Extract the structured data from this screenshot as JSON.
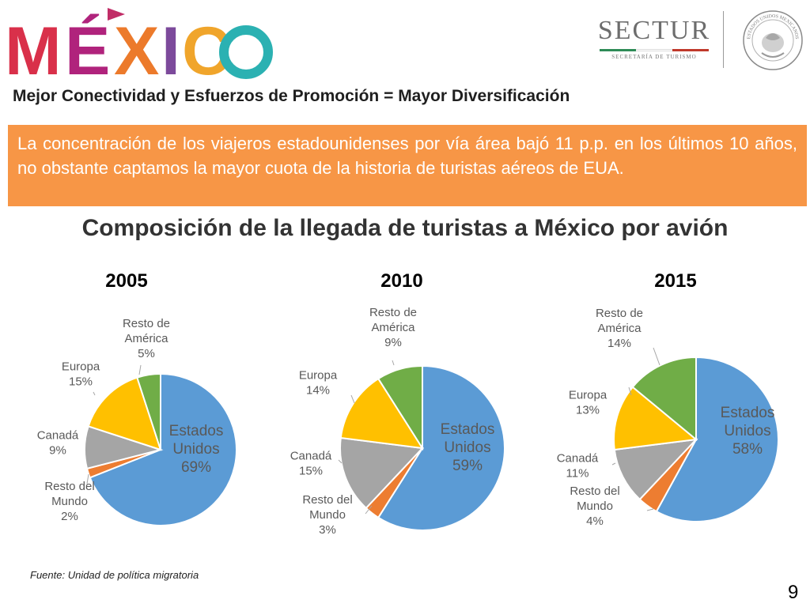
{
  "header": {
    "logo_text": "MÉXICO",
    "sectur_word": "SECTUR",
    "sectur_sub": "SECRETARÍA DE TURISMO",
    "seal_text": "ESTADOS UNIDOS MEXICANOS"
  },
  "subtitle": "Mejor Conectividad y Esfuerzos de Promoción = Mayor Diversificación",
  "callout": "La concentración de los viajeros estadounidenses por vía área bajó 11 p.p. en los últimos 10 años, no obstante captamos la mayor cuota de la historia de turistas aéreos de EUA.",
  "colors": {
    "callout_bg": "#f79646",
    "estados_unidos": "#5b9bd5",
    "resto_del_mundo": "#ed7d31",
    "canada": "#a5a5a5",
    "europa": "#ffc000",
    "resto_de_america": "#70ad47"
  },
  "chart_data": [
    {
      "type": "pie",
      "title": "Composición de la llegada de turistas a México por avión",
      "subtitle": "2005",
      "slices": [
        {
          "label": "Estados Unidos",
          "value": 69,
          "display": "69%",
          "color": "#5b9bd5"
        },
        {
          "label": "Resto del Mundo",
          "value": 2,
          "display": "2%",
          "color": "#ed7d31"
        },
        {
          "label": "Canadá",
          "value": 9,
          "display": "9%",
          "color": "#a5a5a5"
        },
        {
          "label": "Europa",
          "value": 15,
          "display": "15%",
          "color": "#ffc000"
        },
        {
          "label": "Resto de América",
          "value": 5,
          "display": "5%",
          "color": "#70ad47"
        }
      ]
    },
    {
      "type": "pie",
      "title": "Composición de la llegada de turistas a México por avión",
      "subtitle": "2010",
      "slices": [
        {
          "label": "Estados Unidos",
          "value": 59,
          "display": "59%",
          "color": "#5b9bd5"
        },
        {
          "label": "Resto del Mundo",
          "value": 3,
          "display": "3%",
          "color": "#ed7d31"
        },
        {
          "label": "Canadá",
          "value": 15,
          "display": "15%",
          "color": "#a5a5a5"
        },
        {
          "label": "Europa",
          "value": 14,
          "display": "14%",
          "color": "#ffc000"
        },
        {
          "label": "Resto de América",
          "value": 9,
          "display": "9%",
          "color": "#70ad47"
        }
      ]
    },
    {
      "type": "pie",
      "title": "Composición de la llegada de turistas a México por avión",
      "subtitle": "2015",
      "slices": [
        {
          "label": "Estados Unidos",
          "value": 58,
          "display": "58%",
          "color": "#5b9bd5"
        },
        {
          "label": "Resto del Mundo",
          "value": 4,
          "display": "4%",
          "color": "#ed7d31"
        },
        {
          "label": "Canadá",
          "value": 11,
          "display": "11%",
          "color": "#a5a5a5"
        },
        {
          "label": "Europa",
          "value": 13,
          "display": "13%",
          "color": "#ffc000"
        },
        {
          "label": "Resto de América",
          "value": 14,
          "display": "14%",
          "color": "#70ad47"
        }
      ]
    }
  ],
  "source": "Fuente: Unidad de política migratoria",
  "page_number": "9"
}
